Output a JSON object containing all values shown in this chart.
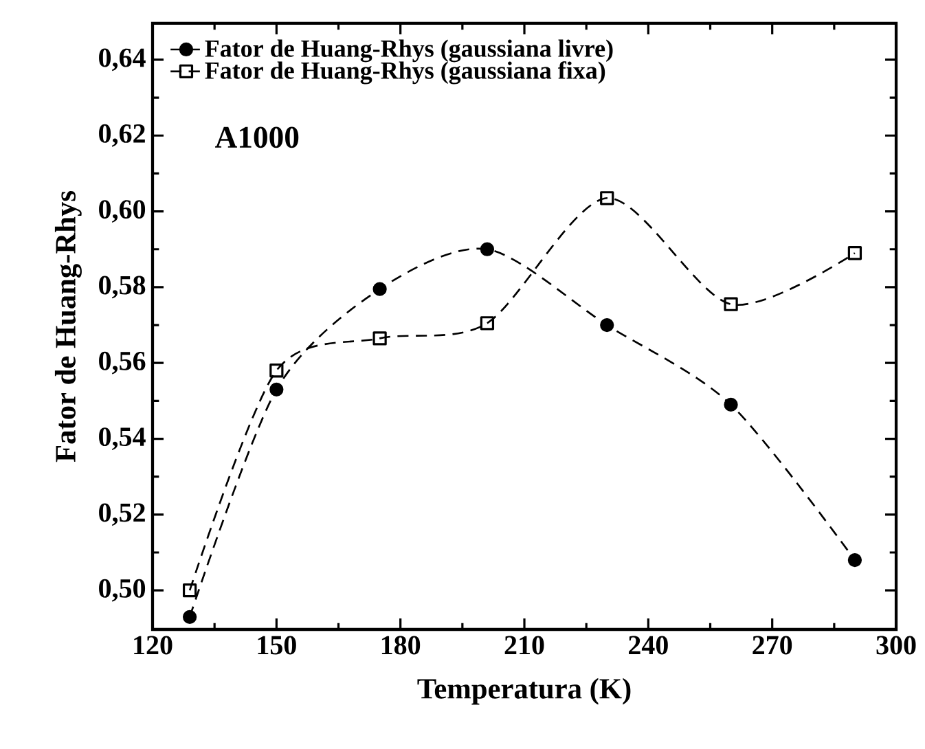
{
  "chart_data": {
    "type": "line",
    "xlabel": "Temperatura (K)",
    "ylabel": "Fator de Huang-Rhys",
    "x": [
      129,
      150,
      175,
      201,
      230,
      260,
      290
    ],
    "series": [
      {
        "name": "Fator de Huang-Rhys (gaussiana livre)",
        "color": "#000000",
        "marker": "circle",
        "values": [
          0.493,
          0.553,
          0.5795,
          0.59,
          0.57,
          0.549,
          0.508
        ]
      },
      {
        "name": "Fator de Huang-Rhys (gaussiana fixa)",
        "color": "#000000",
        "marker": "square",
        "values": [
          0.5,
          0.558,
          0.5665,
          0.5705,
          0.6035,
          0.5755,
          0.589
        ]
      }
    ],
    "annotations": [
      "A1000"
    ],
    "xlim": [
      120,
      300
    ],
    "xticks": [
      120,
      150,
      180,
      210,
      240,
      270,
      300
    ],
    "ylim": [
      0.4897,
      0.6496
    ],
    "yticks": [
      {
        "value": 0.5,
        "label": "0,50"
      },
      {
        "value": 0.52,
        "label": "0,52"
      },
      {
        "value": 0.54,
        "label": "0,54"
      },
      {
        "value": 0.56,
        "label": "0,56"
      },
      {
        "value": 0.58,
        "label": "0,58"
      },
      {
        "value": 0.6,
        "label": "0,60"
      },
      {
        "value": 0.62,
        "label": "0,62"
      },
      {
        "value": 0.64,
        "label": "0,64"
      }
    ],
    "legend": "top left",
    "line_style": "dashed",
    "grid": false
  }
}
